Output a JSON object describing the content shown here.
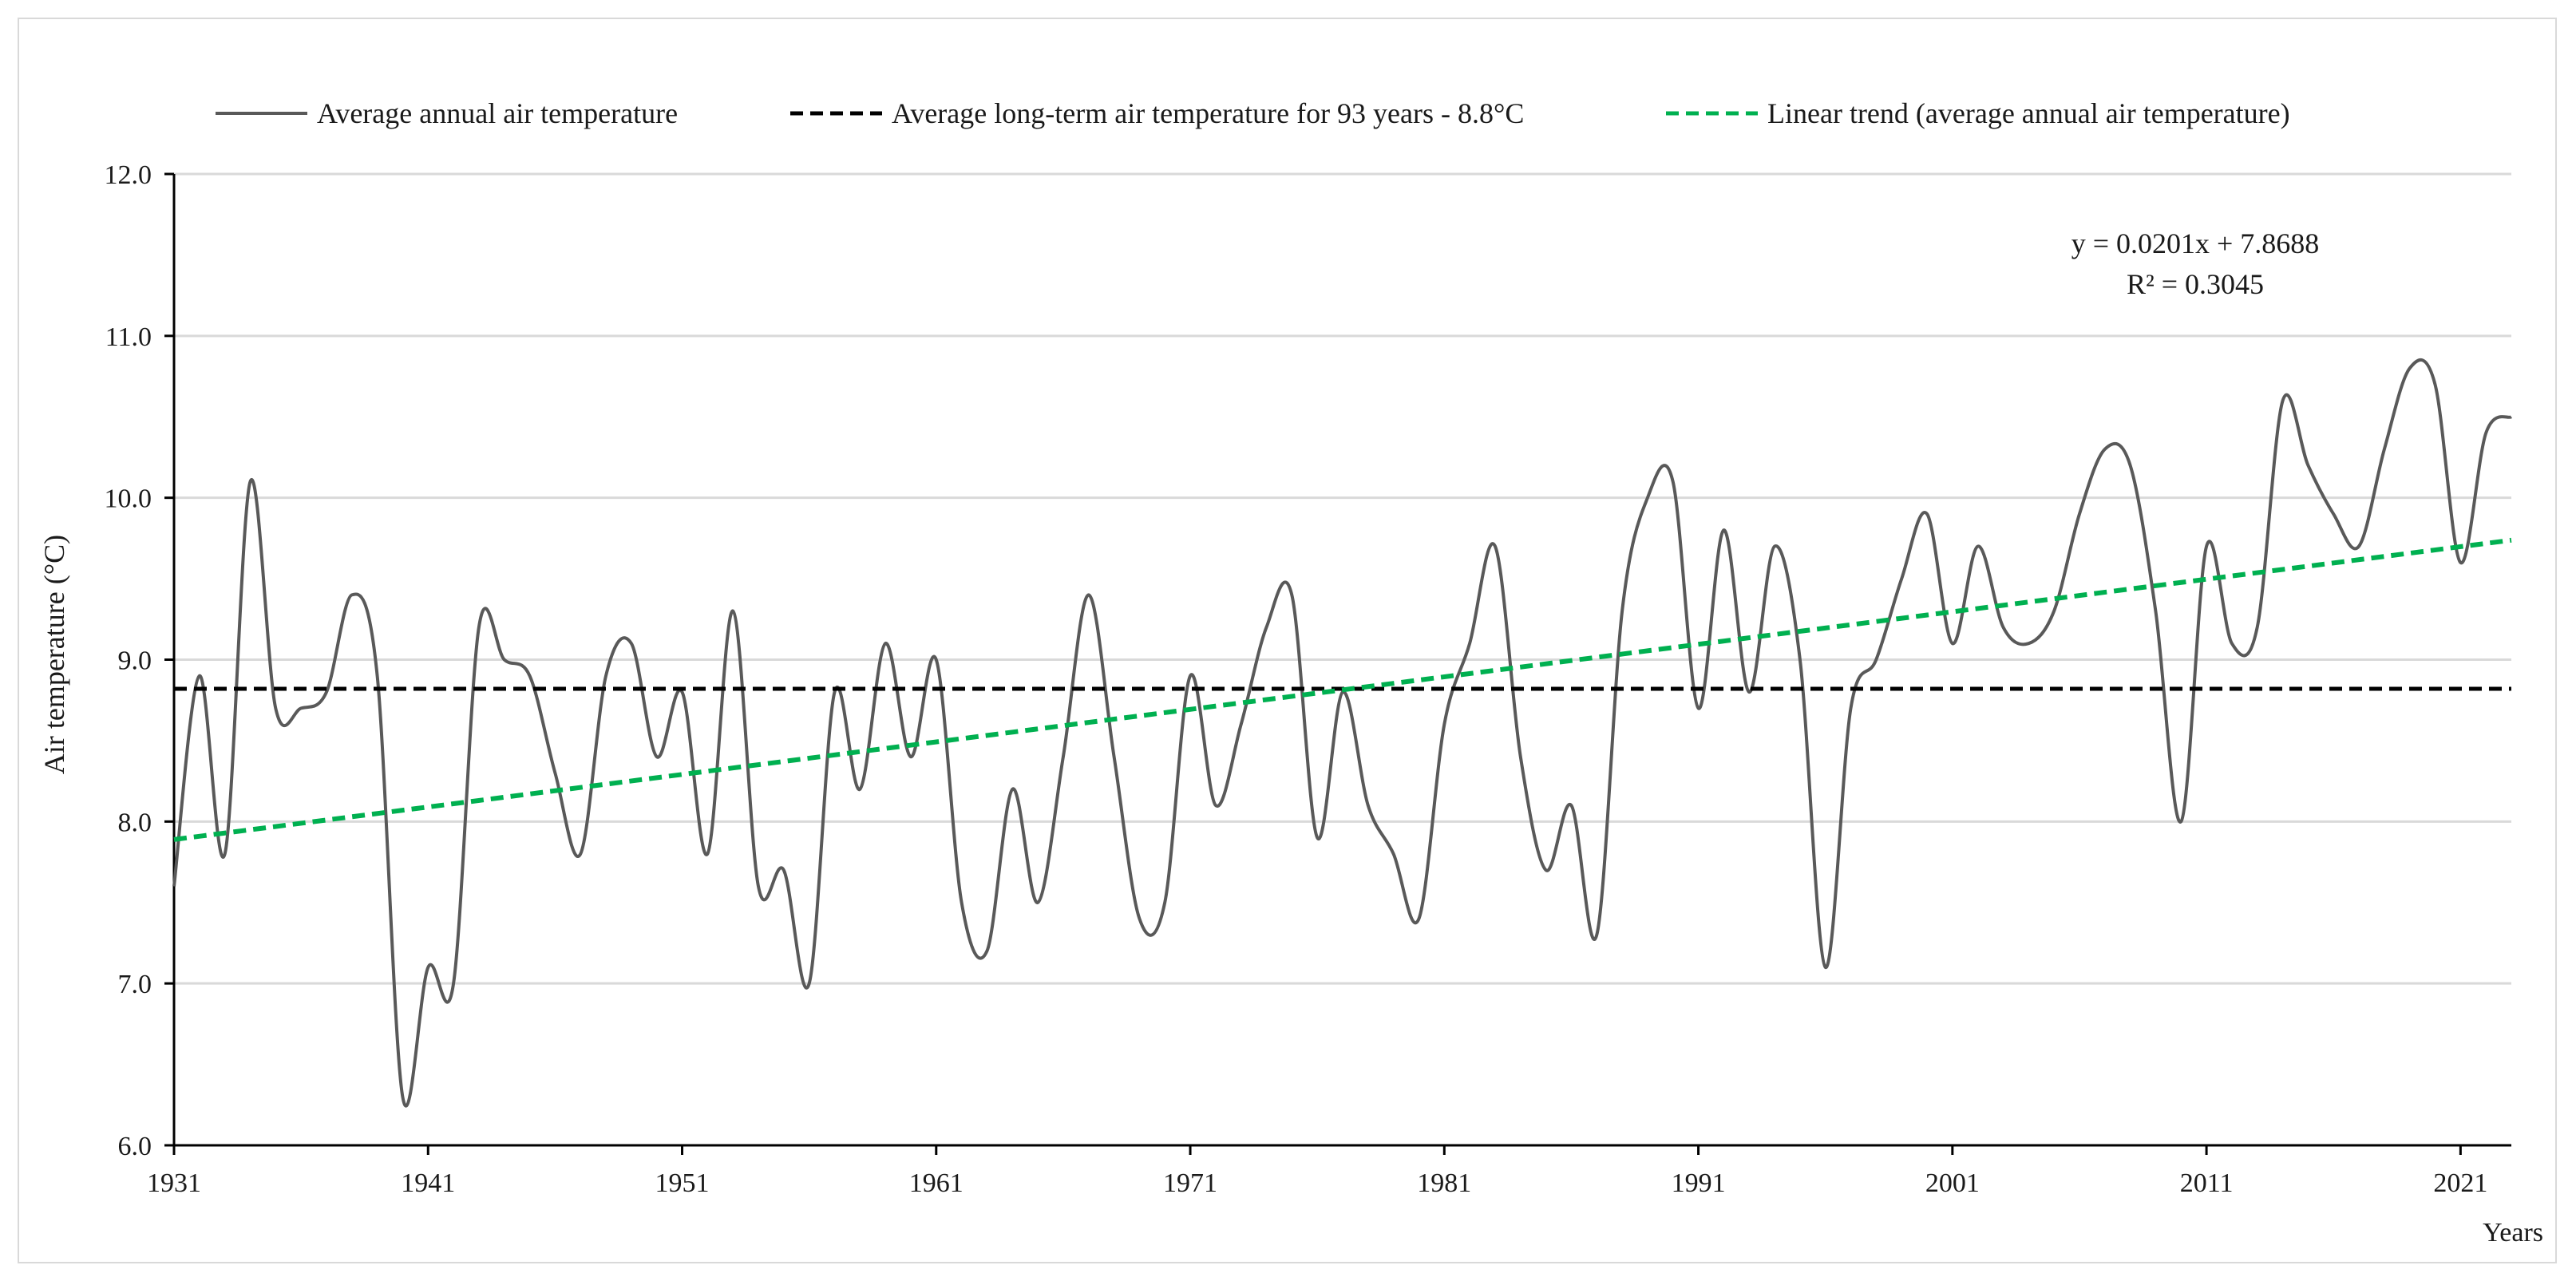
{
  "chart_data": {
    "type": "line",
    "title": "",
    "xlabel": "Years",
    "ylabel": "Air temperature (°C)",
    "xlim": [
      1931,
      2023
    ],
    "ylim": [
      6.0,
      12.0
    ],
    "ytick_values": [
      6.0,
      7.0,
      8.0,
      9.0,
      10.0,
      11.0,
      12.0
    ],
    "ytick_labels": [
      "6.0",
      "7.0",
      "8.0",
      "9.0",
      "10.0",
      "11.0",
      "12.0"
    ],
    "xtick_values": [
      1931,
      1941,
      1951,
      1961,
      1971,
      1981,
      1991,
      2001,
      2011,
      2021
    ],
    "xtick_labels": [
      "1931",
      "1941",
      "1951",
      "1961",
      "1971",
      "1981",
      "1991",
      "2001",
      "2011",
      "2021"
    ],
    "grid": "horizontal",
    "legend_position": "top",
    "legend": [
      "Average annual air temperature",
      "Average long-term air temperature for 93 years - 8.8°C",
      "Linear trend (average annual air temperature)"
    ],
    "annotation": {
      "equation": "y = 0.0201x + 7.8688",
      "r_squared": "R² = 0.3045"
    },
    "series": [
      {
        "name": "Average annual air temperature",
        "color": "#595959",
        "style": "solid",
        "x": [
          1931,
          1932,
          1933,
          1934,
          1935,
          1936,
          1937,
          1938,
          1939,
          1940,
          1941,
          1942,
          1943,
          1944,
          1945,
          1946,
          1947,
          1948,
          1949,
          1950,
          1951,
          1952,
          1953,
          1954,
          1955,
          1956,
          1957,
          1958,
          1959,
          1960,
          1961,
          1962,
          1963,
          1964,
          1965,
          1966,
          1967,
          1968,
          1969,
          1970,
          1971,
          1972,
          1973,
          1974,
          1975,
          1976,
          1977,
          1978,
          1979,
          1980,
          1981,
          1982,
          1983,
          1984,
          1985,
          1986,
          1987,
          1988,
          1989,
          1990,
          1991,
          1992,
          1993,
          1994,
          1995,
          1996,
          1997,
          1998,
          1999,
          2000,
          2001,
          2002,
          2003,
          2004,
          2005,
          2006,
          2007,
          2008,
          2009,
          2010,
          2011,
          2012,
          2013,
          2014,
          2015,
          2016,
          2017,
          2018,
          2019,
          2020,
          2021,
          2022,
          2023
        ],
        "values": [
          7.6,
          8.9,
          7.8,
          10.1,
          8.7,
          8.7,
          8.8,
          9.4,
          8.9,
          6.3,
          7.1,
          7.0,
          9.2,
          9.0,
          8.9,
          8.3,
          7.8,
          8.9,
          9.1,
          8.4,
          8.8,
          7.8,
          9.3,
          7.6,
          7.7,
          7.0,
          8.8,
          8.2,
          9.1,
          8.4,
          9.0,
          7.5,
          7.2,
          8.2,
          7.5,
          8.4,
          9.4,
          8.4,
          7.4,
          7.5,
          8.9,
          8.1,
          8.6,
          9.2,
          9.4,
          7.9,
          8.8,
          8.1,
          7.8,
          7.4,
          8.6,
          9.1,
          9.7,
          8.4,
          7.7,
          8.1,
          7.3,
          9.3,
          10.0,
          10.1,
          8.7,
          9.8,
          8.8,
          9.7,
          9.0,
          7.1,
          8.7,
          9.0,
          9.5,
          9.9,
          9.1,
          9.7,
          9.2,
          9.1,
          9.3,
          9.9,
          10.3,
          10.2,
          9.3,
          8.0,
          9.7,
          9.1,
          9.2,
          10.6,
          10.2,
          9.9,
          9.7,
          10.3,
          10.8,
          10.7,
          9.6,
          10.4,
          10.5
        ]
      },
      {
        "name": "Average long-term air temperature for 93 years - 8.8°C",
        "color": "#000000",
        "style": "dashed",
        "x": [
          1931,
          2023
        ],
        "values": [
          8.82,
          8.82
        ]
      },
      {
        "name": "Linear trend (average annual air temperature)",
        "color": "#00b050",
        "style": "dashed",
        "slope": 0.0201,
        "intercept": 7.8688,
        "x": [
          1931,
          2023
        ],
        "values": [
          7.889,
          9.738
        ]
      }
    ]
  }
}
